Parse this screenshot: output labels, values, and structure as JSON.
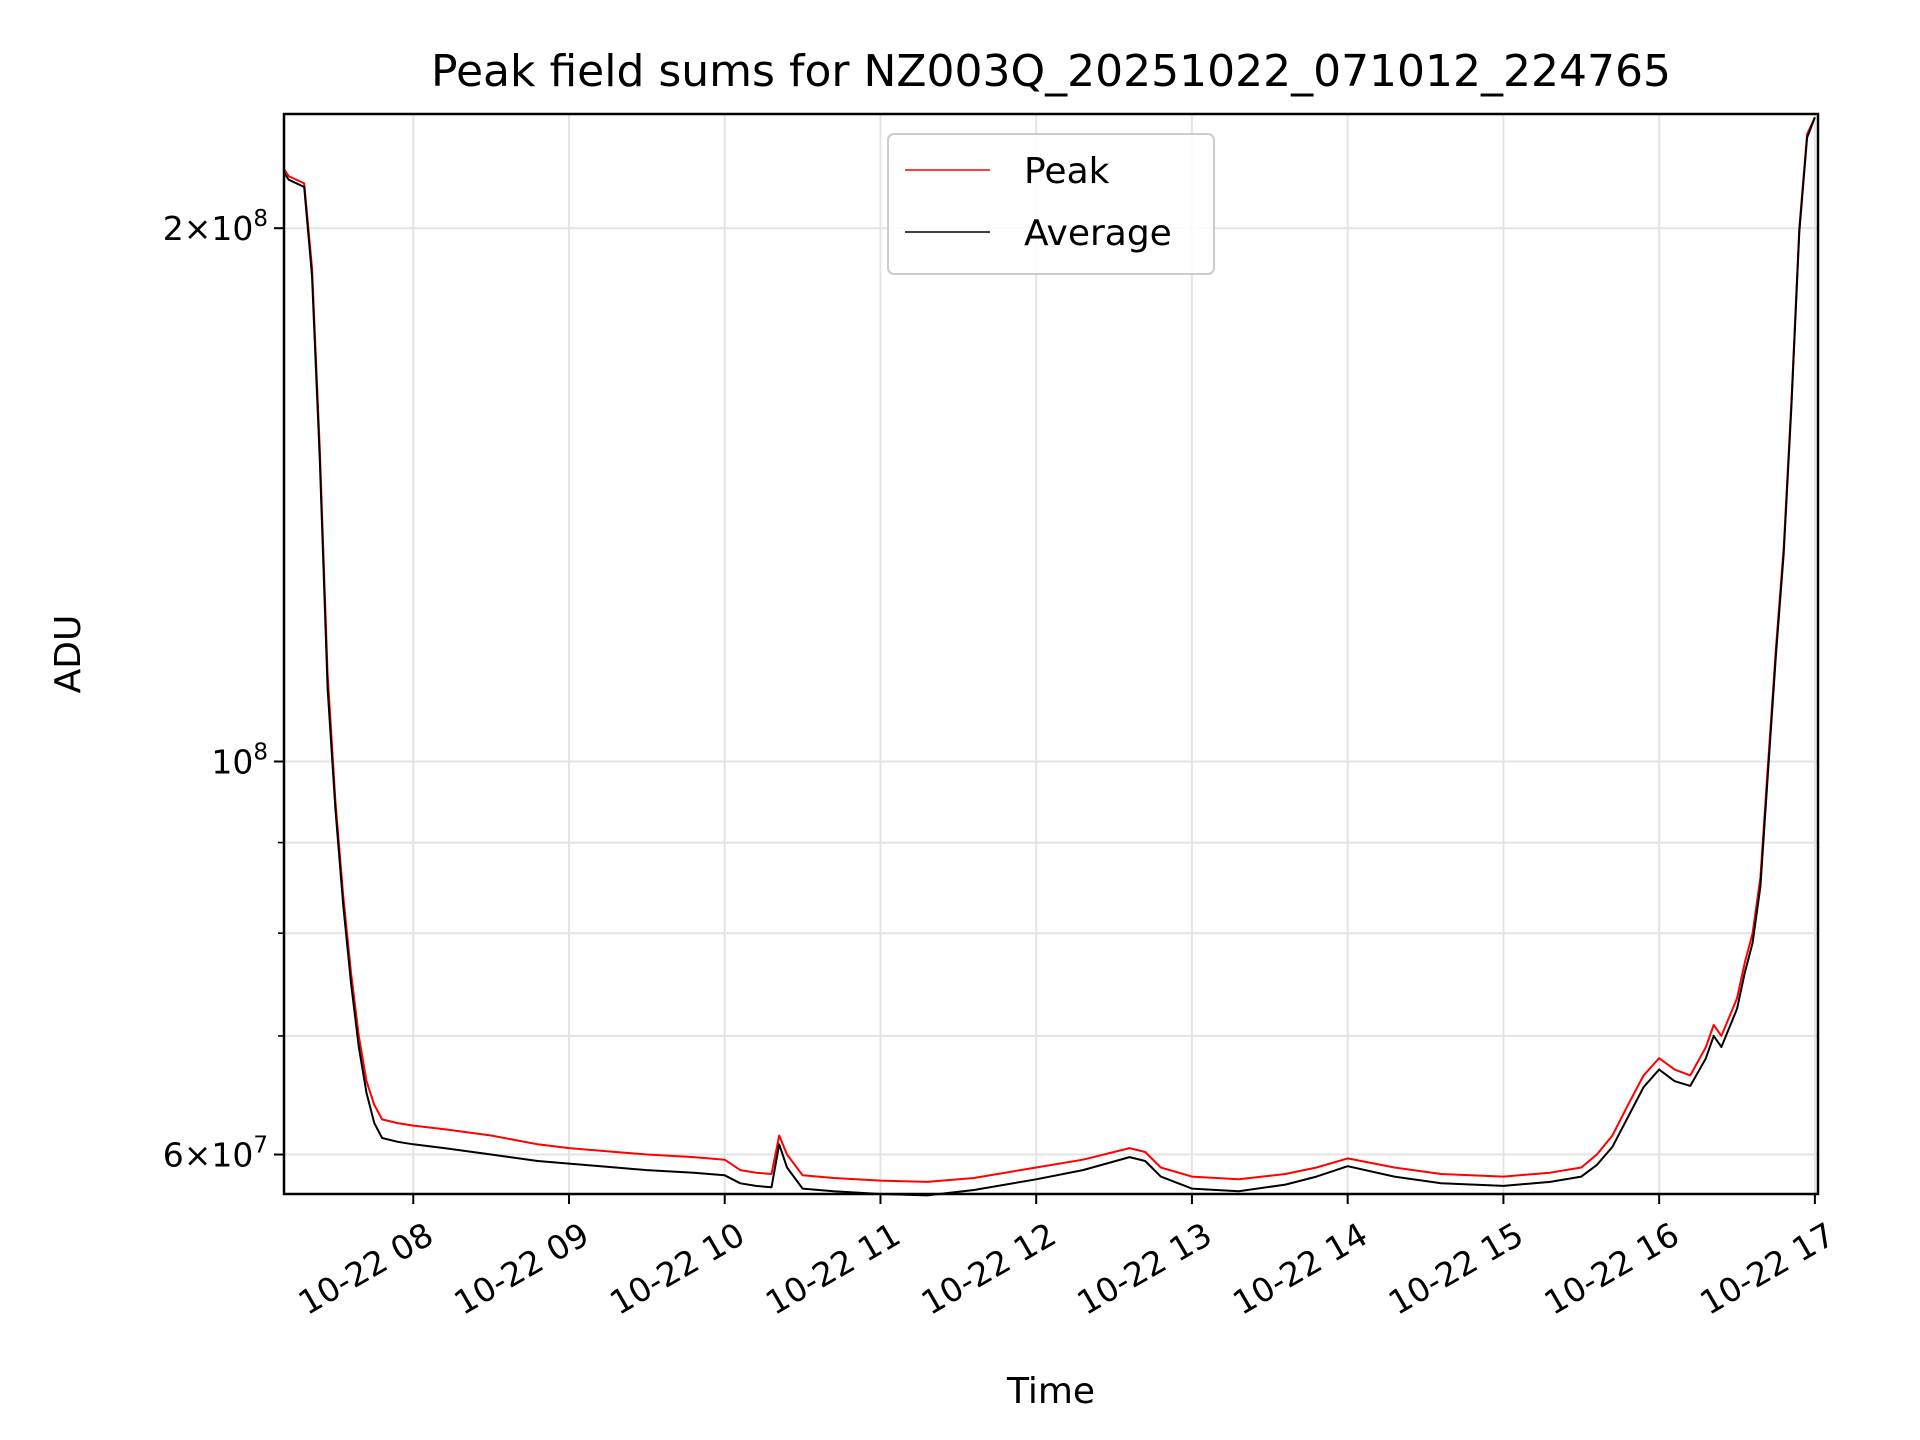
{
  "chart_data": {
    "type": "line",
    "title": "Peak field sums for NZ003Q_20251022_071012_224765",
    "xlabel": "Time",
    "ylabel": "ADU",
    "yscale": "log",
    "ylim": [
      57000000,
      232000000
    ],
    "xlim": [
      7.17,
      17.02
    ],
    "grid": true,
    "legend_location": "upper center",
    "x_unit": "hours of 2025-10-22",
    "x_ticks": [
      {
        "value": 8,
        "label": "10-22 08"
      },
      {
        "value": 9,
        "label": "10-22 09"
      },
      {
        "value": 10,
        "label": "10-22 10"
      },
      {
        "value": 11,
        "label": "10-22 11"
      },
      {
        "value": 12,
        "label": "10-22 12"
      },
      {
        "value": 13,
        "label": "10-22 13"
      },
      {
        "value": 14,
        "label": "10-22 14"
      },
      {
        "value": 15,
        "label": "10-22 15"
      },
      {
        "value": 16,
        "label": "10-22 16"
      },
      {
        "value": 17,
        "label": "10-22 17"
      }
    ],
    "y_ticks_major": [
      {
        "value": 60000000,
        "mantissa": "6",
        "exponent": "7",
        "with_mantissa": true
      },
      {
        "value": 100000000,
        "mantissa": "",
        "exponent": "8",
        "with_mantissa": false
      },
      {
        "value": 200000000,
        "mantissa": "2",
        "exponent": "8",
        "with_mantissa": true
      }
    ],
    "y_ticks_minor": [
      70000000,
      80000000,
      90000000
    ],
    "series": [
      {
        "name": "Peak",
        "color": "#ff0000",
        "x": [
          7.17,
          7.2,
          7.3,
          7.35,
          7.4,
          7.45,
          7.5,
          7.55,
          7.6,
          7.65,
          7.7,
          7.75,
          7.8,
          7.9,
          8.0,
          8.2,
          8.5,
          8.8,
          9.0,
          9.3,
          9.5,
          9.8,
          10.0,
          10.1,
          10.2,
          10.3,
          10.35,
          10.4,
          10.5,
          10.7,
          11.0,
          11.3,
          11.6,
          12.0,
          12.3,
          12.6,
          12.7,
          12.8,
          13.0,
          13.3,
          13.6,
          13.8,
          14.0,
          14.3,
          14.6,
          15.0,
          15.3,
          15.5,
          15.6,
          15.7,
          15.8,
          15.9,
          16.0,
          16.1,
          16.2,
          16.3,
          16.35,
          16.4,
          16.5,
          16.55,
          16.6,
          16.65,
          16.7,
          16.75,
          16.8,
          16.85,
          16.9,
          16.95,
          17.0
        ],
        "y": [
          216000000,
          214000000,
          212000000,
          190000000,
          150000000,
          112000000,
          95000000,
          84000000,
          76000000,
          70000000,
          66000000,
          64000000,
          62800000,
          62500000,
          62300000,
          62000000,
          61500000,
          60800000,
          60500000,
          60200000,
          60000000,
          59800000,
          59600000,
          58800000,
          58600000,
          58500000,
          61500000,
          60000000,
          58400000,
          58200000,
          58000000,
          57900000,
          58200000,
          59000000,
          59600000,
          60500000,
          60200000,
          59000000,
          58300000,
          58100000,
          58500000,
          59000000,
          59700000,
          59000000,
          58500000,
          58300000,
          58600000,
          59000000,
          60000000,
          61500000,
          64000000,
          66500000,
          68000000,
          67000000,
          66500000,
          69000000,
          71000000,
          70000000,
          73500000,
          77000000,
          80000000,
          86000000,
          100000000,
          116000000,
          132000000,
          160000000,
          200000000,
          226000000,
          231000000
        ]
      },
      {
        "name": "Average",
        "color": "#000000",
        "x": [
          7.17,
          7.2,
          7.3,
          7.35,
          7.4,
          7.45,
          7.5,
          7.55,
          7.6,
          7.65,
          7.7,
          7.75,
          7.8,
          7.9,
          8.0,
          8.2,
          8.5,
          8.8,
          9.0,
          9.3,
          9.5,
          9.8,
          10.0,
          10.1,
          10.2,
          10.3,
          10.35,
          10.4,
          10.5,
          10.7,
          11.0,
          11.3,
          11.6,
          12.0,
          12.3,
          12.6,
          12.7,
          12.8,
          13.0,
          13.3,
          13.6,
          13.8,
          14.0,
          14.3,
          14.6,
          15.0,
          15.3,
          15.5,
          15.6,
          15.7,
          15.8,
          15.9,
          16.0,
          16.1,
          16.2,
          16.3,
          16.35,
          16.4,
          16.5,
          16.55,
          16.6,
          16.65,
          16.7,
          16.75,
          16.8,
          16.85,
          16.9,
          16.95,
          17.0
        ],
        "y": [
          215000000,
          213000000,
          211000000,
          188000000,
          148000000,
          110000000,
          94000000,
          83000000,
          75000000,
          69000000,
          65000000,
          62500000,
          61300000,
          61000000,
          60800000,
          60500000,
          60000000,
          59500000,
          59300000,
          59000000,
          58800000,
          58600000,
          58400000,
          57800000,
          57600000,
          57500000,
          60800000,
          59000000,
          57400000,
          57200000,
          57000000,
          56900000,
          57300000,
          58100000,
          58800000,
          59800000,
          59500000,
          58300000,
          57400000,
          57200000,
          57700000,
          58300000,
          59100000,
          58300000,
          57800000,
          57600000,
          57900000,
          58300000,
          59200000,
          60600000,
          63000000,
          65500000,
          67000000,
          66000000,
          65600000,
          68000000,
          70000000,
          69000000,
          72500000,
          76000000,
          79000000,
          85000000,
          99000000,
          115000000,
          131000000,
          159000000,
          199000000,
          225000000,
          231000000
        ]
      }
    ]
  }
}
